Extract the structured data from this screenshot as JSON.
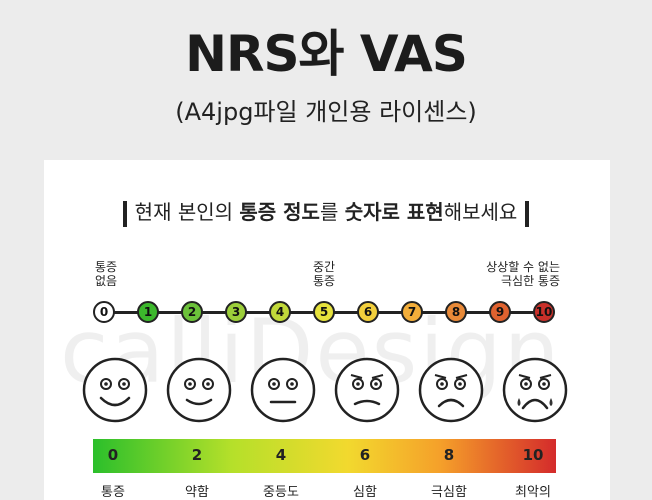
{
  "title": "NRS와 VAS",
  "subtitle": "(A4jpg파일 개인용 라이센스)",
  "watermark": "calliDesign",
  "question": {
    "pre": "현재 본인의 ",
    "b1": "통증 정도",
    "mid1": "를 ",
    "b2": "숫자로 표현",
    "post": "해보세요"
  },
  "labels": {
    "none": [
      "통증",
      "없음"
    ],
    "mid": [
      "중간",
      "통증"
    ],
    "worst": [
      "상상할 수 없는",
      "극심한 통증"
    ]
  },
  "scale": [
    {
      "n": "0",
      "color": "#ffffff"
    },
    {
      "n": "1",
      "color": "#3cb82c"
    },
    {
      "n": "2",
      "color": "#6cc23a"
    },
    {
      "n": "3",
      "color": "#9ccf3a"
    },
    {
      "n": "4",
      "color": "#c2d93a"
    },
    {
      "n": "5",
      "color": "#e6e23c"
    },
    {
      "n": "6",
      "color": "#f2cf3c"
    },
    {
      "n": "7",
      "color": "#f3ae3a"
    },
    {
      "n": "8",
      "color": "#e98a38"
    },
    {
      "n": "9",
      "color": "#e0622f"
    },
    {
      "n": "10",
      "color": "#c9302a"
    }
  ],
  "vas": {
    "numbers": [
      "0",
      "2",
      "4",
      "6",
      "8",
      "10"
    ],
    "labels": [
      "통증",
      "약함",
      "중등도",
      "심함",
      "극심함",
      "최악의"
    ]
  }
}
